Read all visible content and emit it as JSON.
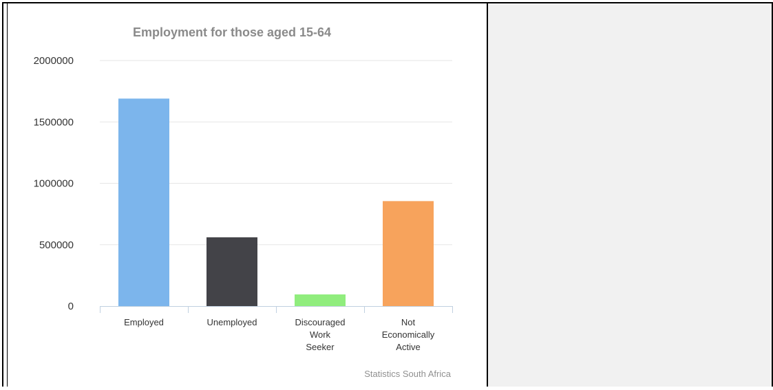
{
  "chart_data": {
    "type": "bar",
    "title": "Employment for those aged 15-64",
    "categories": [
      [
        "Employed"
      ],
      [
        "Unemployed"
      ],
      [
        "Discouraged",
        "Work",
        "Seeker"
      ],
      [
        "Not",
        "Economically",
        "Active"
      ]
    ],
    "values": [
      1690000,
      560000,
      95000,
      855000
    ],
    "colors": [
      "#7cb5ec",
      "#434348",
      "#90ed7d",
      "#f7a35c"
    ],
    "ylim": [
      0,
      2000000
    ],
    "yticks": [
      "0",
      "500000",
      "1000000",
      "1500000",
      "2000000"
    ],
    "grid": true,
    "legend": "none",
    "credit": "Statistics South Africa"
  }
}
